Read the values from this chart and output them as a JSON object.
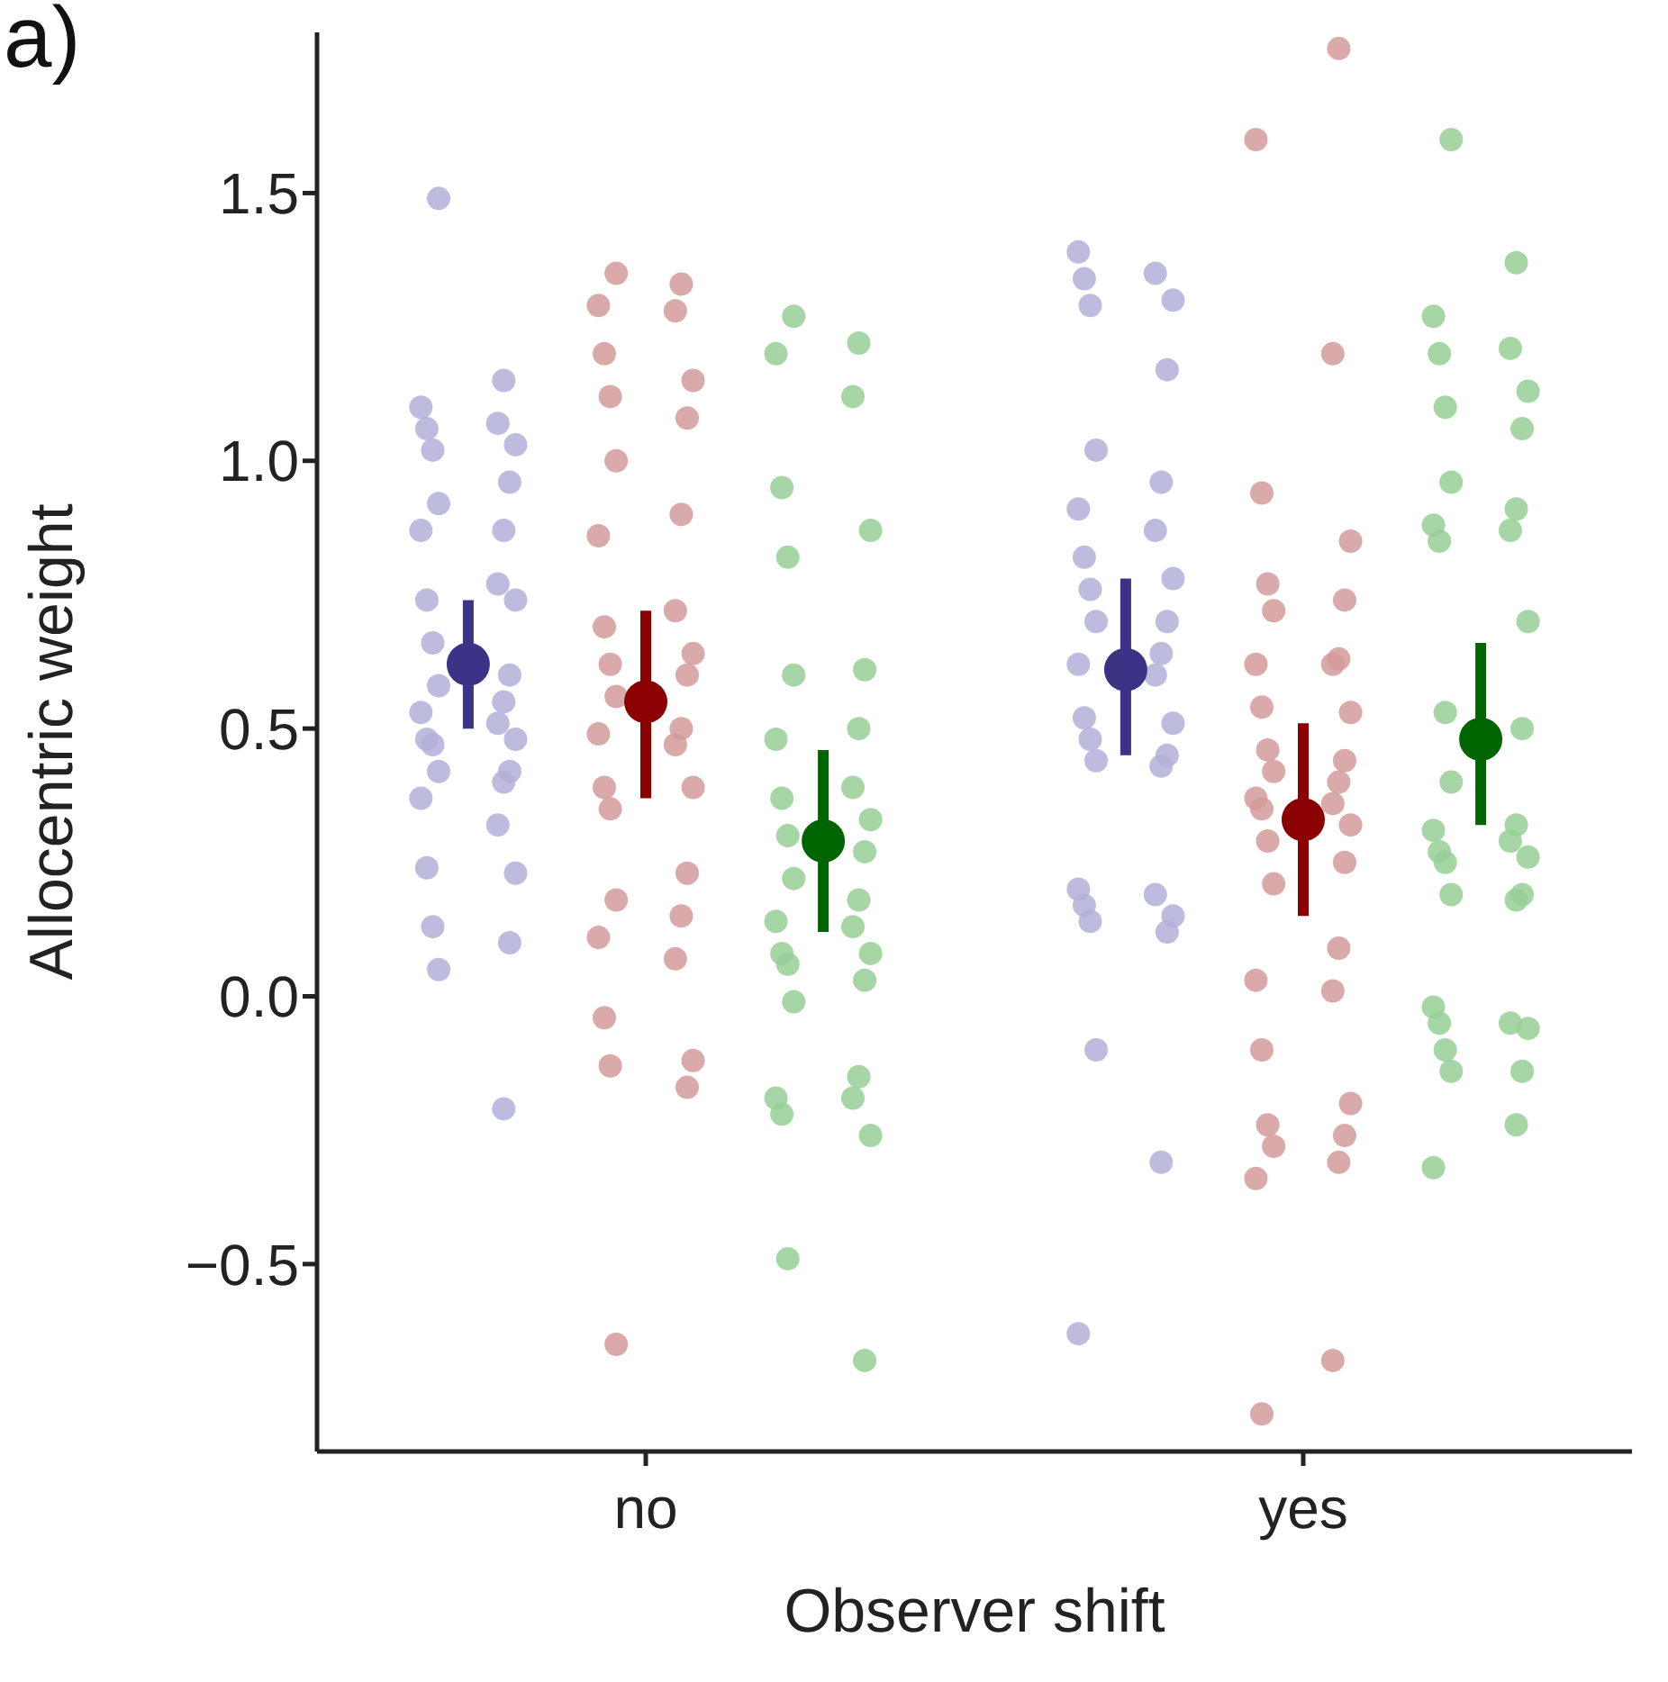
{
  "chart_data": {
    "type": "scatter",
    "title": "a)",
    "xlabel": "Observer shift",
    "ylabel": "Allocentric weight",
    "categories": [
      "no",
      "yes"
    ],
    "ylim": [
      -0.85,
      1.8
    ],
    "yticks": [
      {
        "value": -0.5,
        "label": "−0.5"
      },
      {
        "value": 0,
        "label": "0.0"
      },
      0.5,
      {
        "value": 1,
        "label": "1.0"
      },
      1.5
    ],
    "grid": false,
    "legend": false,
    "marker": "circle",
    "series": [
      {
        "type": "scatter",
        "color": "#b3b0d8",
        "x": [
          "no",
          "no",
          "no",
          "no",
          "no",
          "no",
          "no",
          "no",
          "no",
          "no",
          "no",
          "no",
          "no",
          "no",
          "no",
          "no",
          "no",
          "no",
          "no",
          "no",
          "no",
          "no",
          "no",
          "no",
          "no",
          "no",
          "no",
          "no",
          "no",
          "no",
          "no",
          "no",
          "no",
          "no",
          "yes",
          "yes",
          "yes",
          "yes",
          "yes",
          "yes",
          "yes",
          "yes",
          "yes",
          "yes",
          "yes",
          "yes",
          "yes",
          "yes",
          "yes",
          "yes",
          "yes",
          "yes",
          "yes",
          "yes",
          "yes",
          "yes",
          "yes",
          "yes",
          "yes",
          "yes",
          "yes",
          "yes",
          "yes",
          "yes",
          "yes",
          "yes",
          "yes"
        ],
        "values": [
          1.49,
          1.15,
          1.1,
          1.07,
          1.06,
          1.03,
          1.02,
          0.96,
          0.92,
          0.87,
          0.87,
          0.77,
          0.74,
          0.74,
          0.66,
          0.6,
          0.58,
          0.55,
          0.53,
          0.51,
          0.48,
          0.48,
          0.47,
          0.42,
          0.42,
          0.4,
          0.37,
          0.32,
          0.24,
          0.23,
          0.13,
          0.1,
          0.05,
          -0.21,
          1.39,
          1.35,
          1.34,
          1.3,
          1.29,
          1.17,
          1.02,
          0.96,
          0.91,
          0.87,
          0.82,
          0.78,
          0.76,
          0.7,
          0.7,
          0.64,
          0.62,
          0.6,
          0.52,
          0.51,
          0.48,
          0.45,
          0.44,
          0.43,
          0.2,
          0.19,
          0.17,
          0.15,
          0.14,
          0.12,
          -0.1,
          -0.31,
          -0.63
        ]
      },
      {
        "type": "scatter",
        "color": "#d49a9a",
        "x": [
          "no",
          "no",
          "no",
          "no",
          "no",
          "no",
          "no",
          "no",
          "no",
          "no",
          "no",
          "no",
          "no",
          "no",
          "no",
          "no",
          "no",
          "no",
          "no",
          "no",
          "no",
          "no",
          "no",
          "no",
          "no",
          "no",
          "no",
          "no",
          "no",
          "no",
          "no",
          "no",
          "no",
          "yes",
          "yes",
          "yes",
          "yes",
          "yes",
          "yes",
          "yes",
          "yes",
          "yes",
          "yes",
          "yes",
          "yes",
          "yes",
          "yes",
          "yes",
          "yes",
          "yes",
          "yes",
          "yes",
          "yes",
          "yes",
          "yes",
          "yes",
          "yes",
          "yes",
          "yes",
          "yes",
          "yes",
          "yes",
          "yes",
          "yes",
          "yes",
          "yes",
          "yes",
          "yes",
          "yes"
        ],
        "values": [
          1.35,
          1.33,
          1.29,
          1.28,
          1.2,
          1.15,
          1.12,
          1.08,
          1.0,
          0.9,
          0.86,
          0.72,
          0.69,
          0.64,
          0.62,
          0.6,
          0.56,
          0.5,
          0.49,
          0.47,
          0.39,
          0.39,
          0.35,
          0.23,
          0.18,
          0.15,
          0.11,
          0.07,
          -0.04,
          -0.12,
          -0.13,
          -0.17,
          -0.65,
          1.77,
          1.6,
          1.2,
          0.94,
          0.85,
          0.77,
          0.74,
          0.72,
          0.63,
          0.62,
          0.62,
          0.54,
          0.53,
          0.46,
          0.44,
          0.42,
          0.4,
          0.37,
          0.36,
          0.35,
          0.32,
          0.29,
          0.25,
          0.21,
          0.09,
          0.03,
          0.01,
          -0.1,
          -0.2,
          -0.24,
          -0.26,
          -0.28,
          -0.31,
          -0.34,
          -0.68,
          -0.78
        ]
      },
      {
        "type": "scatter",
        "color": "#97cf97",
        "x": [
          "no",
          "no",
          "no",
          "no",
          "no",
          "no",
          "no",
          "no",
          "no",
          "no",
          "no",
          "no",
          "no",
          "no",
          "no",
          "no",
          "no",
          "no",
          "no",
          "no",
          "no",
          "no",
          "no",
          "no",
          "no",
          "no",
          "no",
          "no",
          "no",
          "no",
          "no",
          "no",
          "yes",
          "yes",
          "yes",
          "yes",
          "yes",
          "yes",
          "yes",
          "yes",
          "yes",
          "yes",
          "yes",
          "yes",
          "yes",
          "yes",
          "yes",
          "yes",
          "yes",
          "yes",
          "yes",
          "yes",
          "yes",
          "yes",
          "yes",
          "yes",
          "yes",
          "yes",
          "yes",
          "yes",
          "yes",
          "yes",
          "yes",
          "yes",
          "yes",
          "yes",
          "yes"
        ],
        "values": [
          1.27,
          1.22,
          1.2,
          1.12,
          0.95,
          0.87,
          0.82,
          0.61,
          0.6,
          0.5,
          0.48,
          0.39,
          0.37,
          0.33,
          0.3,
          0.27,
          0.22,
          0.18,
          0.14,
          0.13,
          0.08,
          0.08,
          0.06,
          0.03,
          -0.01,
          -0.15,
          -0.19,
          -0.19,
          -0.22,
          -0.26,
          -0.49,
          -0.68,
          1.6,
          1.37,
          1.27,
          1.21,
          1.2,
          1.13,
          1.1,
          1.06,
          0.96,
          0.91,
          0.88,
          0.87,
          0.85,
          0.7,
          0.53,
          0.5,
          0.4,
          0.32,
          0.31,
          0.29,
          0.27,
          0.26,
          0.25,
          0.19,
          0.19,
          0.18,
          -0.02,
          -0.05,
          -0.05,
          -0.06,
          -0.1,
          -0.14,
          -0.14,
          -0.24,
          -0.32
        ]
      },
      {
        "type": "scatter",
        "color": "#3b3486",
        "values": [
          0.62,
          0.61
        ],
        "errors": [
          [
            0.5,
            0.74
          ],
          [
            0.45,
            0.78
          ]
        ]
      },
      {
        "type": "scatter",
        "color": "#8b0000",
        "values": [
          0.55,
          0.33
        ],
        "errors": [
          [
            0.37,
            0.72
          ],
          [
            0.15,
            0.51
          ]
        ]
      },
      {
        "type": "scatter",
        "color": "#006400",
        "values": [
          0.29,
          0.48
        ],
        "errors": [
          [
            0.12,
            0.46
          ],
          [
            0.32,
            0.66
          ]
        ]
      }
    ]
  }
}
